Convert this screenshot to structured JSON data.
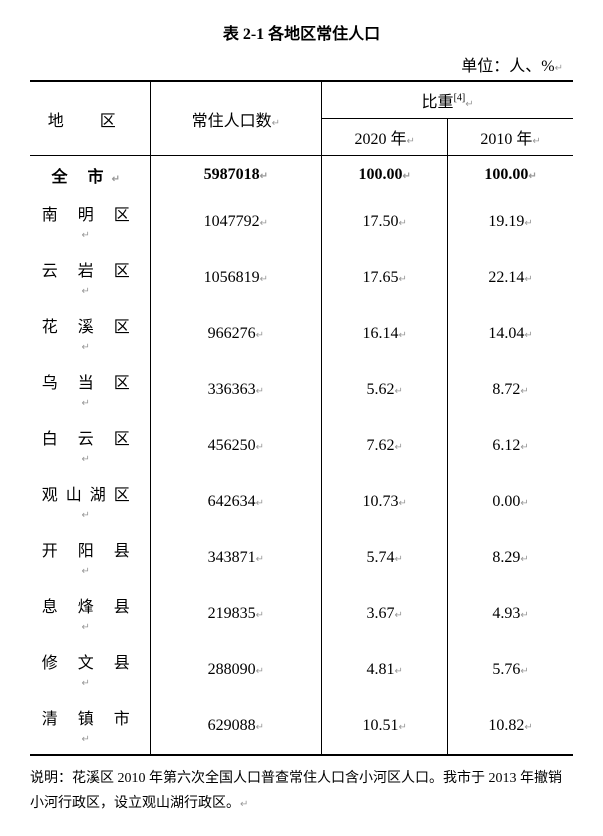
{
  "title": "表 2-1 各地区常住人口",
  "unit_label": "单位：人、%",
  "headers": {
    "region": "地  区",
    "population": "常住人口数",
    "ratio": "比重",
    "ratio_sup": "[4]",
    "year_2020": "2020 年",
    "year_2010": "2010 年"
  },
  "rows": [
    {
      "region": "全    市",
      "population": "5987018",
      "ratio_2020": "100.00",
      "ratio_2010": "100.00",
      "bold": true
    },
    {
      "region": "南 明 区",
      "population": "1047792",
      "ratio_2020": "17.50",
      "ratio_2010": "19.19",
      "bold": false
    },
    {
      "region": "云 岩 区",
      "population": "1056819",
      "ratio_2020": "17.65",
      "ratio_2010": "22.14",
      "bold": false
    },
    {
      "region": "花 溪 区",
      "population": "966276",
      "ratio_2020": "16.14",
      "ratio_2010": "14.04",
      "bold": false
    },
    {
      "region": "乌 当 区",
      "population": "336363",
      "ratio_2020": "5.62",
      "ratio_2010": "8.72",
      "bold": false
    },
    {
      "region": "白 云 区",
      "population": "456250",
      "ratio_2020": "7.62",
      "ratio_2010": "6.12",
      "bold": false
    },
    {
      "region": "观山湖区",
      "population": "642634",
      "ratio_2020": "10.73",
      "ratio_2010": "0.00",
      "bold": false
    },
    {
      "region": "开 阳 县",
      "population": "343871",
      "ratio_2020": "5.74",
      "ratio_2010": "8.29",
      "bold": false
    },
    {
      "region": "息 烽 县",
      "population": "219835",
      "ratio_2020": "3.67",
      "ratio_2010": "4.93",
      "bold": false
    },
    {
      "region": "修 文 县",
      "population": "288090",
      "ratio_2020": "4.81",
      "ratio_2010": "5.76",
      "bold": false
    },
    {
      "region": "清 镇 市",
      "population": "629088",
      "ratio_2020": "10.51",
      "ratio_2010": "10.82",
      "bold": false
    }
  ],
  "note": "说明：花溪区 2010 年第六次全国人口普查常住人口含小河区人口。我市于 2013 年撤销小河行政区，设立观山湖行政区。",
  "table_style": {
    "font_size_title": 15,
    "font_size_body": 14,
    "font_size_note": 14,
    "border_color": "#000000",
    "background_color": "#ffffff"
  }
}
